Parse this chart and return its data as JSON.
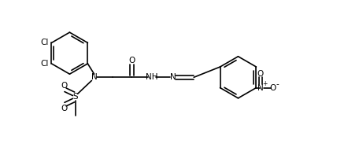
{
  "bg_color": "#ffffff",
  "line_color": "#000000",
  "lw": 1.2,
  "fs": 7.5,
  "fig_width": 4.42,
  "fig_height": 1.92,
  "dpi": 100,
  "xlim": [
    0,
    9.5
  ],
  "ylim": [
    0,
    4.2
  ]
}
